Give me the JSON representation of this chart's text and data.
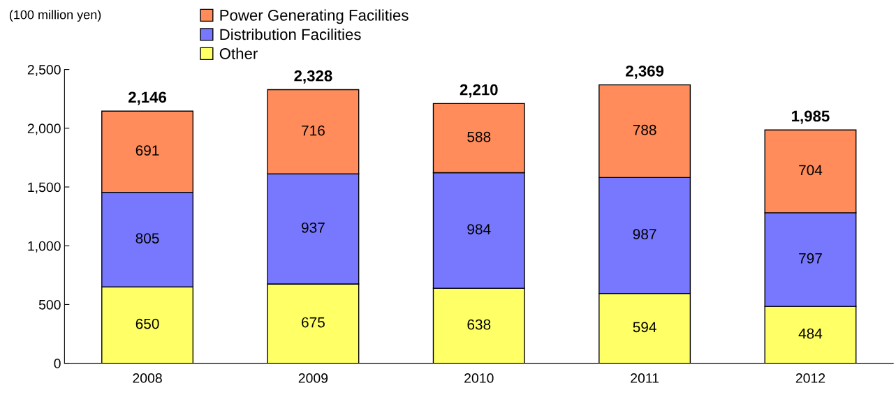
{
  "chart_data": {
    "type": "bar",
    "ylabel": "(100 million yen)",
    "stacked": true,
    "data_labels": true,
    "legend": "top",
    "grid": false,
    "categories": [
      "2008",
      "2009",
      "2010",
      "2011",
      "2012"
    ],
    "series": [
      {
        "name": "Other",
        "color": "#ffff66",
        "values": [
          650,
          675,
          638,
          594,
          484
        ]
      },
      {
        "name": "Distribution Facilities",
        "color": "#7878ff",
        "values": [
          805,
          937,
          984,
          987,
          797
        ]
      },
      {
        "name": "Power Generating Facilities",
        "color": "#ff8c5a",
        "values": [
          691,
          716,
          588,
          788,
          704
        ]
      }
    ],
    "totals": [
      "2,146",
      "2,328",
      "2,210",
      "2,369",
      "1,985"
    ],
    "ylim": [
      0,
      2500
    ],
    "yticks": [
      0,
      {
        "value": 500,
        "label": "500"
      },
      {
        "value": 1000,
        "label": "1,000"
      },
      {
        "value": 1500,
        "label": "1,500"
      },
      {
        "value": 2000,
        "label": "2,000"
      },
      {
        "value": 2500,
        "label": "2,500"
      }
    ]
  }
}
